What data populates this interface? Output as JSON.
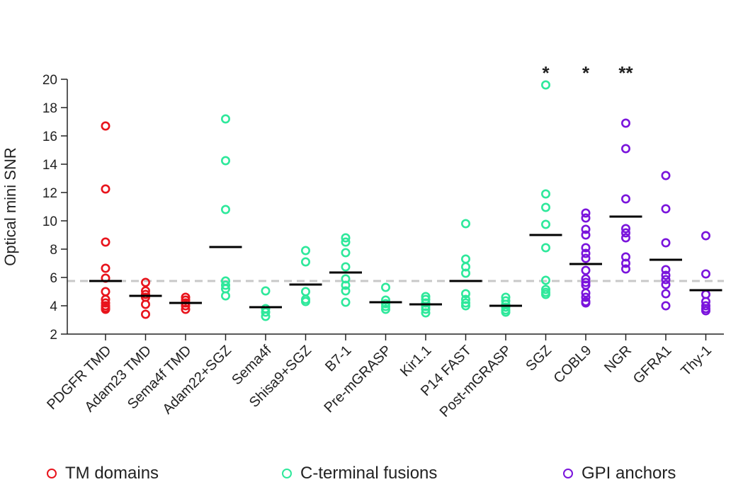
{
  "chart_data": {
    "type": "scatter",
    "title": "",
    "xlabel": "",
    "ylabel": "Optical mini SNR",
    "ylim": [
      2,
      20
    ],
    "yticks": [
      2,
      4,
      6,
      8,
      10,
      12,
      14,
      16,
      18,
      20
    ],
    "reference_line": 5.75,
    "colors": {
      "tm": "#e8141c",
      "cterm": "#2ee89b",
      "gpi": "#7a14dc",
      "axis": "#222222",
      "mean": "#000000",
      "reference": "#c8c8c8"
    },
    "categories": [
      {
        "label": "PDGFR TMD",
        "group": "tm",
        "mean": 5.75,
        "values": [
          16.7,
          12.25,
          8.5,
          6.65,
          5.95,
          5.0,
          4.45,
          4.2,
          4.0,
          3.85,
          3.75
        ]
      },
      {
        "label": "Adam23 TMD",
        "group": "tm",
        "mean": 4.7,
        "values": [
          5.65,
          5.05,
          4.8,
          4.6,
          4.1,
          3.4
        ]
      },
      {
        "label": "Sema4f TMD",
        "group": "tm",
        "mean": 4.2,
        "values": [
          4.6,
          4.4,
          4.2,
          4.0,
          3.75
        ]
      },
      {
        "label": "Adam22+SGZ",
        "group": "cterm",
        "mean": 8.15,
        "values": [
          17.2,
          14.25,
          10.8,
          5.75,
          5.45,
          5.2,
          4.7
        ]
      },
      {
        "label": "Sema4f",
        "group": "cterm",
        "mean": 3.9,
        "values": [
          5.05,
          3.8,
          3.55,
          3.25
        ]
      },
      {
        "label": "Shisa9+SGZ",
        "group": "cterm",
        "mean": 5.5,
        "values": [
          7.9,
          7.1,
          5.0,
          4.45,
          4.3
        ]
      },
      {
        "label": "B7-1",
        "group": "cterm",
        "mean": 6.35,
        "values": [
          8.8,
          8.5,
          7.75,
          6.75,
          5.9,
          5.45,
          5.05,
          4.25
        ]
      },
      {
        "label": "Pre-mGRASP",
        "group": "cterm",
        "mean": 4.25,
        "values": [
          5.3,
          4.4,
          4.15,
          3.95,
          3.75
        ]
      },
      {
        "label": "Kir1.1",
        "group": "cterm",
        "mean": 4.1,
        "values": [
          4.65,
          4.45,
          4.2,
          3.95,
          3.75,
          3.5
        ]
      },
      {
        "label": "P14 FAST",
        "group": "cterm",
        "mean": 5.75,
        "values": [
          9.8,
          7.3,
          6.75,
          6.3,
          4.85,
          4.45,
          4.2,
          4.0
        ]
      },
      {
        "label": "Post-mGRASP",
        "group": "cterm",
        "mean": 4.0,
        "values": [
          4.6,
          4.35,
          4.1,
          3.9,
          3.7,
          3.55
        ]
      },
      {
        "label": "SGZ",
        "group": "cterm",
        "mean": 9.0,
        "annotation": "*",
        "values": [
          19.6,
          11.9,
          10.95,
          9.75,
          8.1,
          5.8,
          5.15,
          4.95,
          4.8
        ]
      },
      {
        "label": "COBL9",
        "group": "gpi",
        "mean": 6.95,
        "annotation": "*",
        "values": [
          10.55,
          10.2,
          9.4,
          9.0,
          8.1,
          7.7,
          7.35,
          6.5,
          5.9,
          5.65,
          5.45,
          4.9,
          4.6,
          4.3,
          4.2
        ]
      },
      {
        "label": "NGR",
        "group": "gpi",
        "mean": 10.3,
        "annotation": "**",
        "values": [
          16.9,
          15.1,
          11.55,
          9.45,
          9.15,
          8.8,
          7.45,
          7.0,
          6.6
        ]
      },
      {
        "label": "GFRA1",
        "group": "gpi",
        "mean": 7.25,
        "values": [
          13.2,
          10.85,
          8.45,
          6.55,
          6.15,
          5.85,
          5.5,
          4.85,
          4.0
        ]
      },
      {
        "label": "Thy-1",
        "group": "gpi",
        "mean": 5.1,
        "values": [
          8.95,
          6.25,
          4.8,
          4.3,
          4.0,
          3.8,
          3.65
        ]
      }
    ],
    "legend": [
      {
        "group": "tm",
        "label": "TM domains"
      },
      {
        "group": "cterm",
        "label": "C-terminal fusions"
      },
      {
        "group": "gpi",
        "label": "GPI anchors"
      }
    ]
  }
}
